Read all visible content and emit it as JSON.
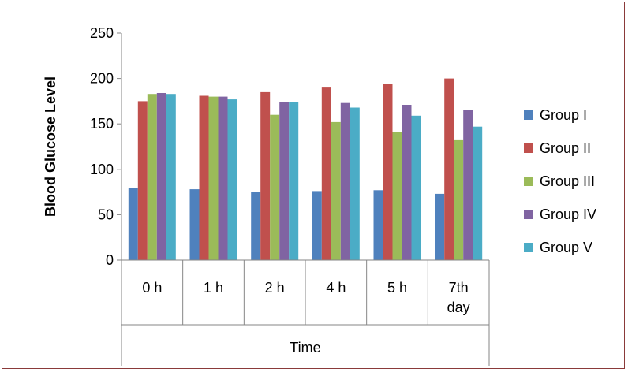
{
  "chart_data": {
    "type": "bar",
    "categories": [
      "0 h",
      "1 h",
      "2 h",
      "4 h",
      "5 h",
      "7th day"
    ],
    "series": [
      {
        "name": "Group I",
        "color": "#4f81bd",
        "values": [
          79,
          78,
          75,
          76,
          77,
          73
        ]
      },
      {
        "name": "Group II",
        "color": "#c0504d",
        "values": [
          175,
          181,
          185,
          190,
          194,
          200
        ]
      },
      {
        "name": "Group III",
        "color": "#9bbb59",
        "values": [
          183,
          180,
          160,
          152,
          141,
          132
        ]
      },
      {
        "name": "Group IV",
        "color": "#8064a2",
        "values": [
          184,
          180,
          174,
          173,
          171,
          165
        ]
      },
      {
        "name": "Group V",
        "color": "#4bacc6",
        "values": [
          183,
          177,
          174,
          168,
          159,
          147
        ]
      }
    ],
    "xlabel": "Time",
    "ylabel": "Blood Glucose Level",
    "ylim": [
      0,
      250
    ],
    "yticks": [
      "0",
      "50",
      "100",
      "150",
      "200",
      "250"
    ],
    "grid": false,
    "legend_position": "right"
  }
}
